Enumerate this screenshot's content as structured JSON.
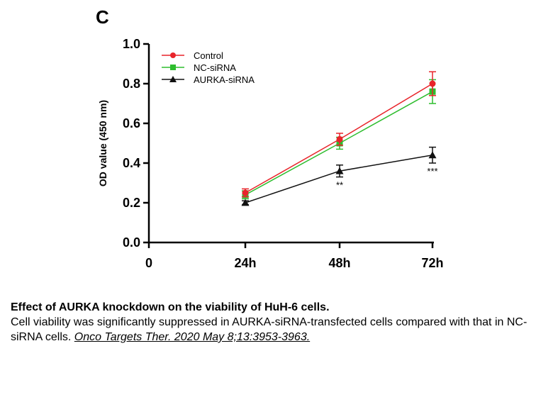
{
  "panel_label": "C",
  "chart_data": {
    "type": "line",
    "x": [
      "0",
      "24h",
      "48h",
      "72h"
    ],
    "ylabel": "OD value (450 nm)",
    "ylim": [
      0.0,
      1.0
    ],
    "yticks": [
      "0.0",
      "0.2",
      "0.4",
      "0.6",
      "0.8",
      "1.0"
    ],
    "series": [
      {
        "name": "Control",
        "color": "#e8242a",
        "marker": "circle",
        "x": [
          "24h",
          "48h",
          "72h"
        ],
        "values": [
          0.25,
          0.52,
          0.8
        ],
        "errors": [
          0.02,
          0.03,
          0.06
        ]
      },
      {
        "name": "NC-siRNA",
        "color": "#2ebd2e",
        "marker": "square",
        "x": [
          "24h",
          "48h",
          "72h"
        ],
        "values": [
          0.24,
          0.5,
          0.76
        ],
        "errors": [
          0.02,
          0.03,
          0.06
        ]
      },
      {
        "name": "AURKA-siRNA",
        "color": "#111111",
        "marker": "triangle",
        "x": [
          "24h",
          "48h",
          "72h"
        ],
        "values": [
          0.2,
          0.36,
          0.44
        ],
        "errors": [
          0.01,
          0.03,
          0.04
        ]
      }
    ],
    "annotations": [
      {
        "x": "48h",
        "text": "**"
      },
      {
        "x": "72h",
        "text": "***"
      }
    ],
    "legend_position": "top-left"
  },
  "caption": {
    "title": "Effect of AURKA knockdown on the viability of HuH-6 cells.",
    "body": "Cell viability was significantly suppressed in AURKA-siRNA-transfected cells compared with that in NC-siRNA cells. ",
    "citation": "Onco Targets Ther. 2020 May 8;13:3953-3963."
  }
}
